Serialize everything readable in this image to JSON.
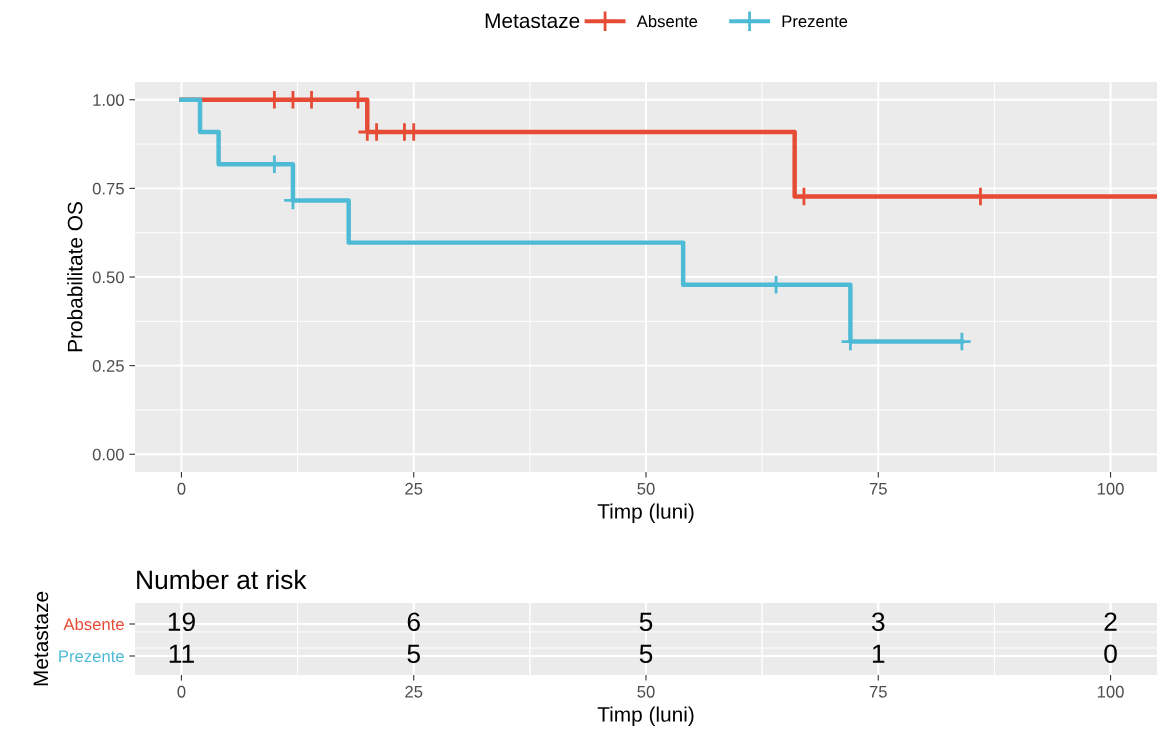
{
  "chart_data": [
    {
      "type": "step",
      "ylabel": "Probabilitate OS",
      "xlabel": "Timp (luni)",
      "legend_title": "Metastaze",
      "legend": "top",
      "grid": true,
      "xlim": [
        -5,
        105
      ],
      "xticks": [
        0,
        25,
        50,
        75,
        100
      ],
      "ylim": [
        -0.05,
        1.05
      ],
      "yticks": [
        {
          "value": 0,
          "label": "0.00"
        },
        {
          "value": 0.25,
          "label": "0.25"
        },
        {
          "value": 0.5,
          "label": "0.50"
        },
        {
          "value": 0.75,
          "label": "0.75"
        },
        {
          "value": 1,
          "label": "1.00"
        }
      ],
      "series": [
        {
          "name": "Absente",
          "color": "#e64b35",
          "x": [
            0,
            20,
            66,
            105
          ],
          "values": [
            1.0,
            0.909,
            0.727,
            0.727
          ]
        },
        {
          "name": "Prezente",
          "color": "#4dbbd5",
          "x": [
            0,
            2,
            4,
            12,
            18,
            54,
            72,
            84
          ],
          "values": [
            1.0,
            0.909,
            0.818,
            0.716,
            0.597,
            0.478,
            0.318,
            0.318
          ]
        },
        {
          "type": "scatter",
          "color": "#e64b35",
          "marker": "cross",
          "x": [
            10,
            12,
            14,
            19,
            20,
            21,
            24,
            25,
            67,
            86
          ],
          "values": [
            1.0,
            1.0,
            1.0,
            1.0,
            0.909,
            0.909,
            0.909,
            0.909,
            0.727,
            0.727
          ]
        },
        {
          "type": "scatter",
          "color": "#4dbbd5",
          "marker": "cross",
          "x": [
            10,
            12,
            64,
            72,
            84
          ],
          "values": [
            0.818,
            0.716,
            0.478,
            0.318,
            0.318
          ]
        }
      ]
    },
    {
      "type": "heatmap",
      "data_labels": true,
      "title": "Number at risk",
      "xlabel": "Timp (luni)",
      "ylabel": "Metastaze",
      "grid": true,
      "xlim": [
        -5,
        105
      ],
      "xticks": [
        0,
        25,
        50,
        75,
        100
      ],
      "x": [
        0,
        25,
        50,
        75,
        100
      ],
      "y_categories": [
        "Absente",
        "Prezente"
      ],
      "colors": [
        "#e64b35",
        "#4dbbd5"
      ],
      "cells": [
        [
          19,
          6,
          5,
          3,
          2
        ],
        [
          11,
          5,
          5,
          1,
          0
        ]
      ]
    }
  ]
}
